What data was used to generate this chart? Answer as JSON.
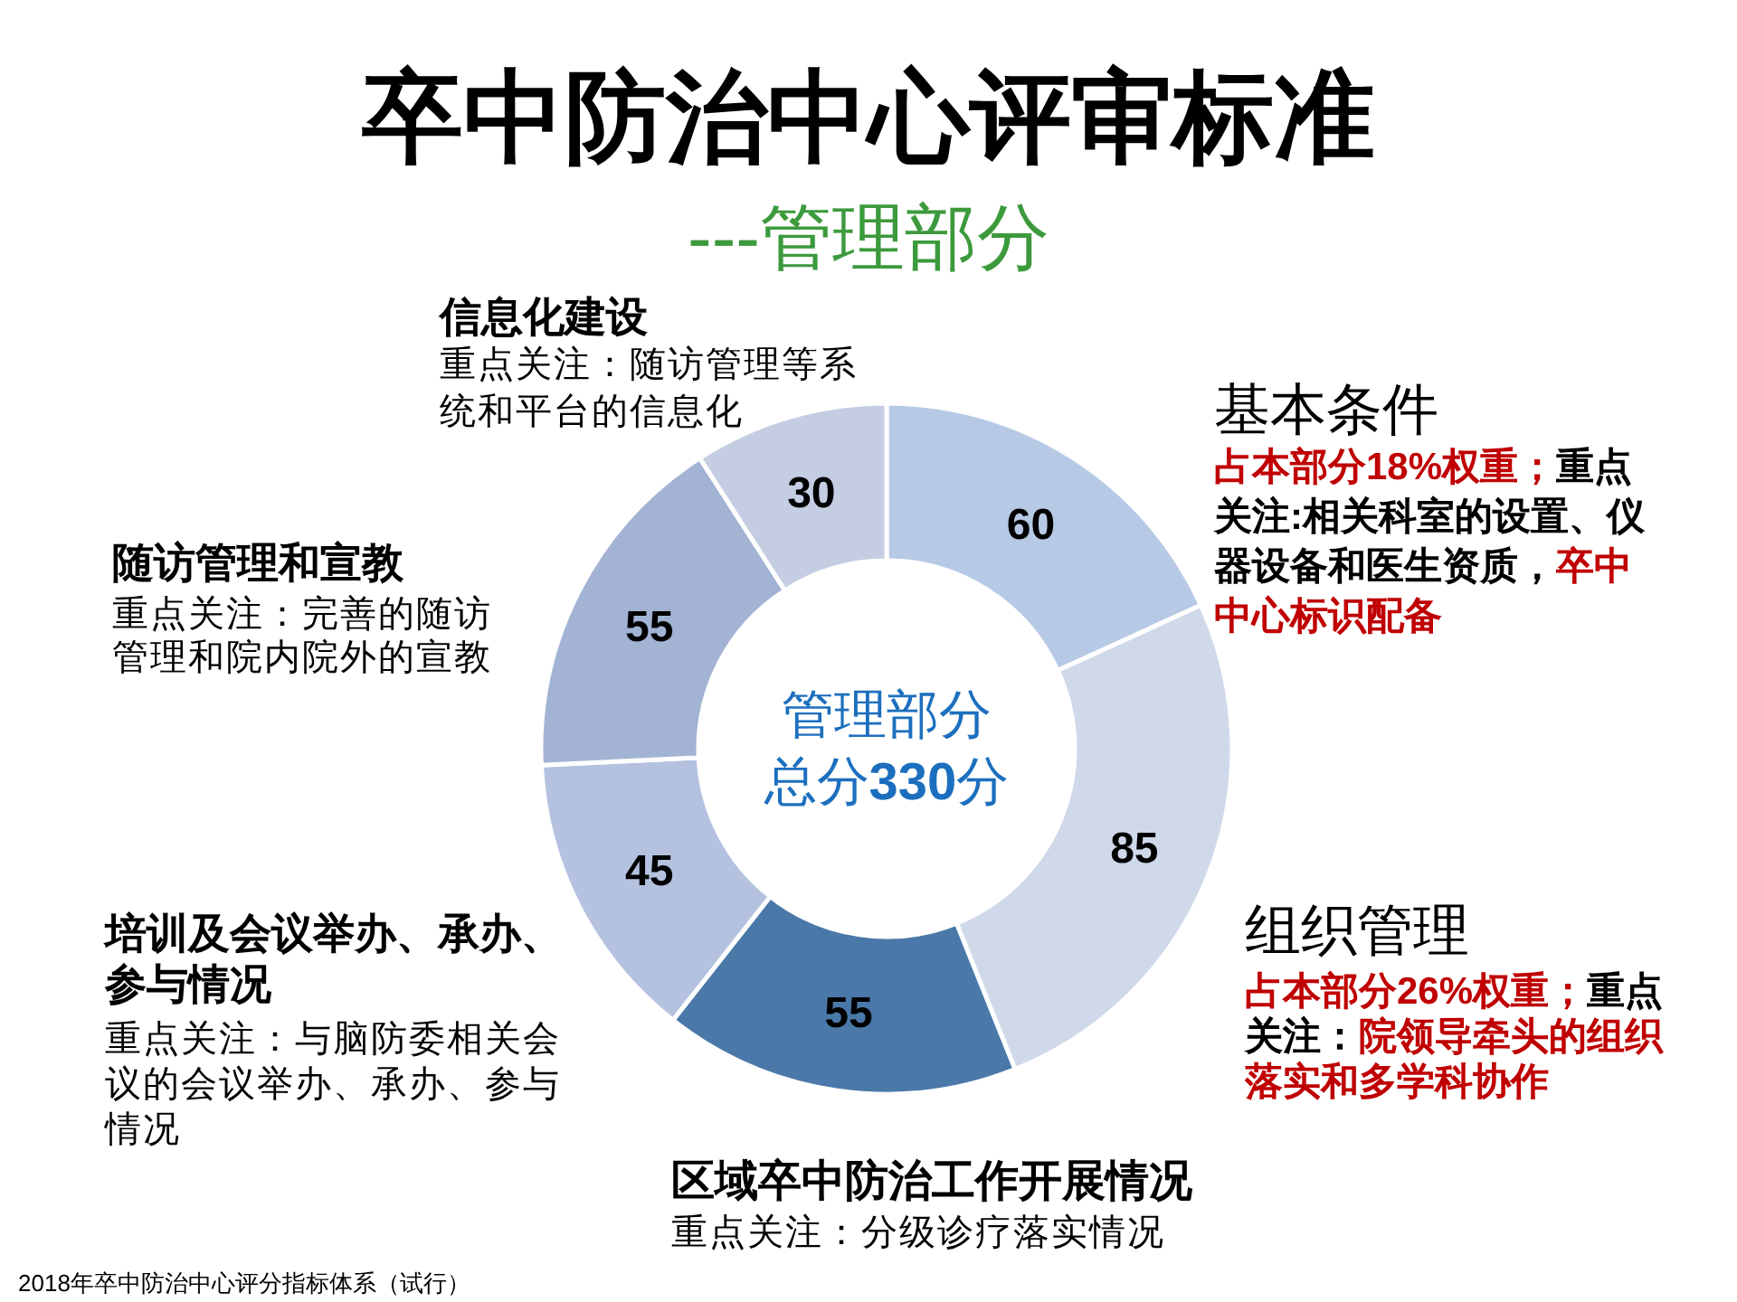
{
  "chart_data": {
    "type": "donut",
    "title": "卒中防治中心评审标准",
    "subtitle": "---管理部分",
    "categories": [
      "基本条件",
      "组织管理",
      "区域卒中防治工作开展情况",
      "培训及会议举办、承办、参与情况",
      "随访管理和宣教",
      "信息化建设"
    ],
    "values": [
      60,
      85,
      55,
      45,
      55,
      30
    ],
    "colors": [
      "#b7cae5",
      "#d0d9ea",
      "#4a79a9",
      "#b4c2df",
      "#a2b3d4",
      "#c4cde2"
    ],
    "data_labels": true,
    "annotations": [
      "**占本部分18%权重；**重点关注:相关科室的设置、仪器设备和医生资质，**卒中中心标识配备**",
      "**占本部分26%权重；**重点关注：**院领导牵头的组织落实和多学科协作**",
      "重点关注：分级诊疗落实情况",
      "重点关注：与脑防委相关会议的会议举办、承办、参与情况",
      "重点关注：完善的随访管理和院内院外的宣教",
      "重点关注：随访管理等系统和平台的信息化",
      "管理部分",
      "总分**330**分",
      "2018年卒中防治中心评分指标体系（试行）"
    ]
  }
}
